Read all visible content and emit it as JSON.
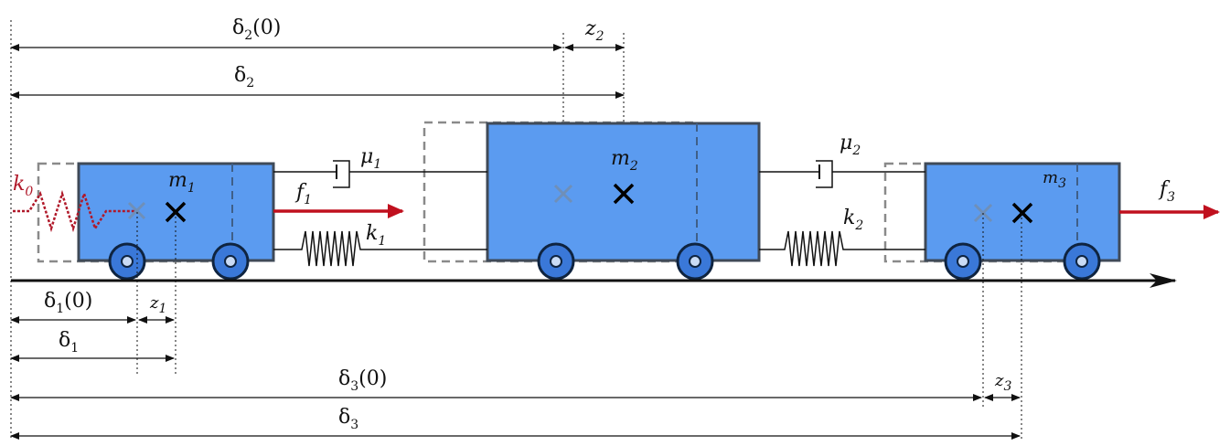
{
  "labels": {
    "delta2_0": {
      "base": "δ",
      "sub": "2",
      "suffix": "(0)"
    },
    "z2": {
      "base": "z",
      "sub": "2",
      "suffix": ""
    },
    "delta2": {
      "base": "δ",
      "sub": "2",
      "suffix": ""
    },
    "m1": {
      "base": "m",
      "sub": "1",
      "suffix": ""
    },
    "m2": {
      "base": "m",
      "sub": "2",
      "suffix": ""
    },
    "m3": {
      "base": "m",
      "sub": "3",
      "suffix": ""
    },
    "mu1": {
      "base": "μ",
      "sub": "1",
      "suffix": ""
    },
    "mu2": {
      "base": "μ",
      "sub": "2",
      "suffix": ""
    },
    "k0": {
      "base": "k",
      "sub": "0",
      "suffix": ""
    },
    "k1": {
      "base": "k",
      "sub": "1",
      "suffix": ""
    },
    "k2": {
      "base": "k",
      "sub": "2",
      "suffix": ""
    },
    "f1": {
      "base": "f",
      "sub": "1",
      "suffix": ""
    },
    "f3": {
      "base": "f",
      "sub": "3",
      "suffix": ""
    },
    "delta1_0": {
      "base": "δ",
      "sub": "1",
      "suffix": "(0)"
    },
    "z1": {
      "base": "z",
      "sub": "1",
      "suffix": ""
    },
    "delta1": {
      "base": "δ",
      "sub": "1",
      "suffix": ""
    },
    "delta3_0": {
      "base": "δ",
      "sub": "3",
      "suffix": "(0)"
    },
    "z3": {
      "base": "z",
      "sub": "3",
      "suffix": ""
    },
    "delta3": {
      "base": "δ",
      "sub": "3",
      "suffix": ""
    }
  },
  "colors": {
    "mass_fill": "#5b9bf0",
    "mass_stroke": "#3f4a58",
    "wheel_fill": "#3a78d8",
    "wheel_stroke": "#0f2440",
    "force_arrow": "#c0101e",
    "wall_spring": "#b0192a",
    "ghost_outline": "#8a8a8a",
    "dimension_line": "#111111"
  },
  "icons": {
    "displaced_center": "x-mark-icon",
    "original_center": "faded-x-mark-icon",
    "damper": "dashpot-icon",
    "spring": "spring-icon",
    "wheel": "wheel-icon"
  }
}
